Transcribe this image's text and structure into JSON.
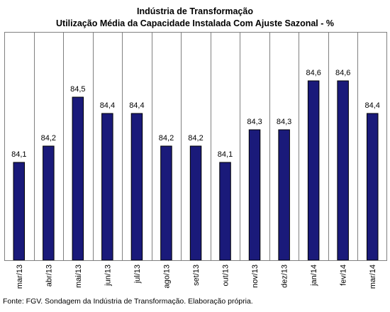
{
  "chart_data": {
    "type": "bar",
    "title": "Indústria de Transformação",
    "subtitle": "Utilização Média da Capacidade Instalada Com Ajuste Sazonal - %",
    "categories": [
      "mar/13",
      "abr/13",
      "mai/13",
      "jun/13",
      "jul/13",
      "ago/13",
      "set/13",
      "out/13",
      "nov/13",
      "dez/13",
      "jan/14",
      "fev/14",
      "mar/14"
    ],
    "values": [
      84.1,
      84.2,
      84.5,
      84.4,
      84.4,
      84.2,
      84.2,
      84.1,
      84.3,
      84.3,
      84.6,
      84.6,
      84.4
    ],
    "data_labels": [
      "84,1",
      "84,2",
      "84,5",
      "84,4",
      "84,4",
      "84,2",
      "84,2",
      "84,1",
      "84,3",
      "84,3",
      "84,6",
      "84,6",
      "84,4"
    ],
    "xlabel": "",
    "ylabel": "",
    "ylim": [
      83.5,
      84.9
    ],
    "bar_color": "#1a1a7a",
    "grid": "vertical",
    "legend": "none"
  },
  "source": "Fonte: FGV. Sondagem da Indústria de Transformação. Elaboração própria."
}
